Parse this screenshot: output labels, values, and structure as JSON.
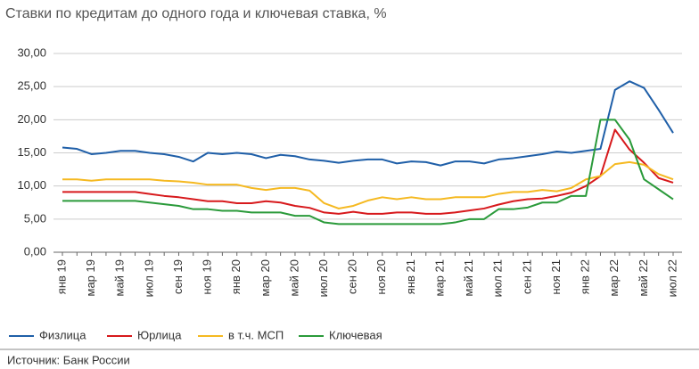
{
  "chart_data": {
    "type": "line",
    "title": "Ставки по кредитам до одного года и ключевая ставка, %",
    "source": "Источник: Банк России",
    "categories": [
      "янв 19",
      null,
      "мар 19",
      null,
      "май 19",
      null,
      "июл 19",
      null,
      "сен 19",
      null,
      "ноя 19",
      null,
      "янв 20",
      null,
      "мар 20",
      null,
      "май 20",
      null,
      "июл 20",
      null,
      "сен 20",
      null,
      "ноя 20",
      null,
      "янв 21",
      null,
      "мар 21",
      null,
      "май 21",
      null,
      "июл 21",
      null,
      "сен 21",
      null,
      "ноя 21",
      null,
      "янв 22",
      null,
      "мар 22",
      null,
      "май 22",
      null,
      "июл 22"
    ],
    "series": [
      {
        "name": "Физлица",
        "color": "#1f5fa8",
        "values": [
          15.8,
          15.6,
          14.8,
          15.0,
          15.3,
          15.3,
          15.0,
          14.8,
          14.4,
          13.7,
          15.0,
          14.8,
          15.0,
          14.8,
          14.2,
          14.7,
          14.5,
          14.0,
          13.8,
          13.5,
          13.8,
          14.0,
          14.0,
          13.4,
          13.7,
          13.6,
          13.1,
          13.7,
          13.7,
          13.4,
          14.0,
          14.2,
          14.5,
          14.8,
          15.2,
          15.0,
          15.3,
          15.6,
          24.5,
          25.8,
          24.8,
          21.5,
          18.0
        ]
      },
      {
        "name": "Юрлица",
        "color": "#d7191c",
        "values": [
          9.1,
          9.1,
          9.1,
          9.1,
          9.1,
          9.1,
          8.8,
          8.5,
          8.3,
          8.0,
          7.7,
          7.7,
          7.4,
          7.4,
          7.7,
          7.5,
          7.0,
          6.7,
          6.0,
          5.8,
          6.1,
          5.8,
          5.8,
          6.0,
          6.0,
          5.8,
          5.8,
          6.0,
          6.3,
          6.6,
          7.2,
          7.7,
          8.0,
          8.1,
          8.5,
          9.0,
          10.0,
          11.5,
          18.5,
          15.5,
          13.5,
          11.2,
          10.5
        ]
      },
      {
        "name": "в т.ч. МСП",
        "color": "#f5b921",
        "values": [
          11.0,
          11.0,
          10.8,
          11.0,
          11.0,
          11.0,
          11.0,
          10.8,
          10.7,
          10.5,
          10.2,
          10.2,
          10.2,
          9.7,
          9.4,
          9.7,
          9.7,
          9.3,
          7.4,
          6.6,
          7.0,
          7.8,
          8.3,
          8.0,
          8.3,
          8.0,
          8.0,
          8.3,
          8.3,
          8.3,
          8.8,
          9.1,
          9.1,
          9.4,
          9.2,
          9.7,
          11.0,
          11.5,
          13.3,
          13.6,
          13.2,
          11.8,
          11.0
        ]
      },
      {
        "name": "Ключевая",
        "color": "#2a9a3a",
        "values": [
          7.75,
          7.75,
          7.75,
          7.75,
          7.75,
          7.75,
          7.5,
          7.25,
          7.0,
          6.5,
          6.5,
          6.25,
          6.25,
          6.0,
          6.0,
          6.0,
          5.5,
          5.5,
          4.5,
          4.25,
          4.25,
          4.25,
          4.25,
          4.25,
          4.25,
          4.25,
          4.25,
          4.5,
          5.0,
          5.0,
          6.5,
          6.5,
          6.75,
          7.5,
          7.5,
          8.5,
          8.5,
          20,
          20,
          17,
          11,
          9.5,
          8.0
        ]
      }
    ],
    "ylim": [
      0,
      30
    ],
    "yticks": [
      {
        "value": 0,
        "label": "0,00"
      },
      {
        "value": 5,
        "label": "5,00"
      },
      {
        "value": 10,
        "label": "10,00"
      },
      {
        "value": 15,
        "label": "15,00"
      },
      {
        "value": 20,
        "label": "20,00"
      },
      {
        "value": 25,
        "label": "25,00"
      },
      {
        "value": 30,
        "label": "30,00"
      }
    ],
    "grid": true,
    "legend": "bottom"
  }
}
